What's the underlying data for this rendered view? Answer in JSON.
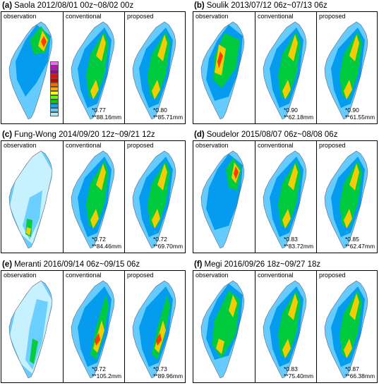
{
  "panels": [
    {
      "letter": "(a)",
      "title": "Saola 2012/08/01 00z~08/02 00z",
      "labels": [
        "observation",
        "conventional",
        "proposed"
      ],
      "conv": {
        "r": "*0.77",
        "rmse": "**88.16mm"
      },
      "prop": {
        "r": "*0.80",
        "rmse": "**85.71mm"
      }
    },
    {
      "letter": "(b)",
      "title": "Soulik 2013/07/12 06z~07/13 06z",
      "labels": [
        "observation",
        "conventional",
        "proposed"
      ],
      "conv": {
        "r": "*0.90",
        "rmse": "**62.18mm"
      },
      "prop": {
        "r": "*0.90",
        "rmse": "**61.55mm"
      }
    },
    {
      "letter": "(c)",
      "title": "Fung-Wong 2014/09/20 12z~09/21 12z",
      "labels": [
        "observation",
        "conventional",
        "proposed"
      ],
      "conv": {
        "r": "*0.72",
        "rmse": "**84.46mm"
      },
      "prop": {
        "r": "*0.72",
        "rmse": "**69.70mm"
      }
    },
    {
      "letter": "(d)",
      "title": "Soudelor 2015/08/07 06z~08/08 06z",
      "labels": [
        "observation",
        "conventional",
        "proposed"
      ],
      "conv": {
        "r": "*0.83",
        "rmse": "**83.72mm"
      },
      "prop": {
        "r": "*0.85",
        "rmse": "**62.47mm"
      }
    },
    {
      "letter": "(e)",
      "title": "Meranti 2016/09/14 06z~09/15 06z",
      "labels": [
        "observation",
        "conventional",
        "proposed"
      ],
      "conv": {
        "r": "*0.72",
        "rmse": "**105.2mm"
      },
      "prop": {
        "r": "*0.73",
        "rmse": "**89.96mm"
      }
    },
    {
      "letter": "(f)",
      "title": "Megi 2016/09/26 18z~09/27 18z",
      "labels": [
        "observation",
        "conventional",
        "proposed"
      ],
      "conv": {
        "r": "*0.83",
        "rmse": "**75.40mm"
      },
      "prop": {
        "r": "*0.87",
        "rmse": "**66.38mm"
      }
    }
  ],
  "colors": {
    "legend": [
      "#ff66ff",
      "#cc00cc",
      "#990099",
      "#ff0000",
      "#cc0000",
      "#ff6600",
      "#ffaa00",
      "#ffff00",
      "#66ff00",
      "#00cc00",
      "#00aaff",
      "#66ccff",
      "#aaeeff"
    ],
    "wet": "#00cc33",
    "mid": "#0099ee",
    "light": "#66ccff",
    "dry": "#ccf2ff",
    "heavy": "#ffcc00",
    "peak": "#ff3300"
  }
}
